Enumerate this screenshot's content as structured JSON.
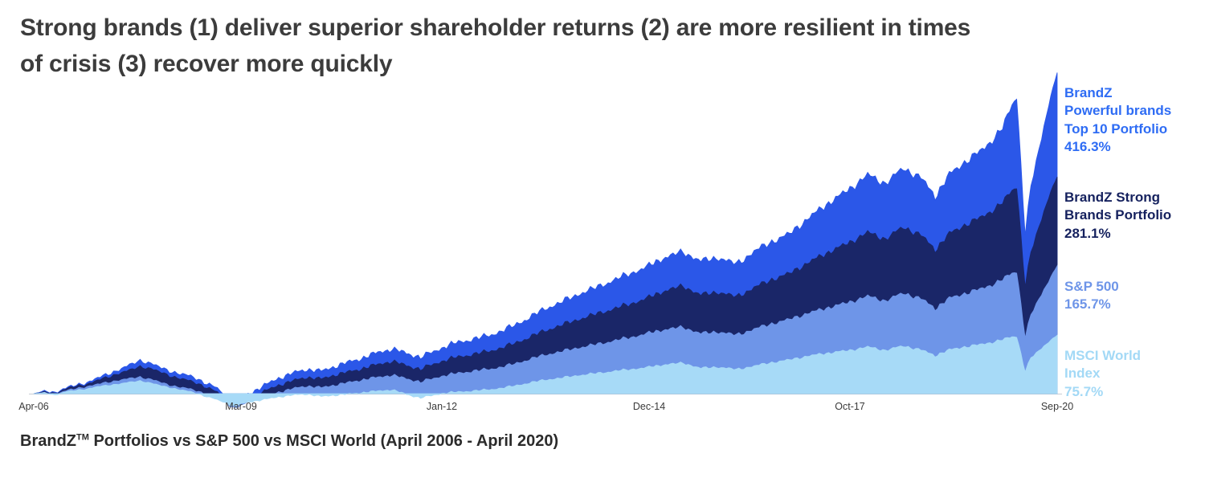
{
  "chart_data": {
    "type": "area",
    "title": "Strong brands (1) deliver superior shareholder returns (2) are more resilient in times of crisis (3) recover more quickly",
    "footnote": {
      "brand": "BrandZ",
      "tm": "TM",
      "rest": " Portfolios vs S&P 500 vs MSCI World (April 2006 - April 2020)"
    },
    "x_unit": "decimal_year",
    "x_range": [
      2006.25,
      2020.67
    ],
    "y_unit": "percent_return_since_apr_2006",
    "y_range_displayed": [
      -20,
      450
    ],
    "baseline": 0,
    "grid": false,
    "legend_position": "right",
    "x_ticks": [
      {
        "label": "Apr-06",
        "x": 2006.25
      },
      {
        "label": "Mar-09",
        "x": 2009.17
      },
      {
        "label": "Jan-12",
        "x": 2012.0
      },
      {
        "label": "Dec-14",
        "x": 2014.92
      },
      {
        "label": "Oct-17",
        "x": 2017.75
      },
      {
        "label": "Sep-20",
        "x": 2020.67
      }
    ],
    "x": [
      2006.25,
      2006.4,
      2006.55,
      2006.7,
      2006.85,
      2007.0,
      2007.15,
      2007.3,
      2007.45,
      2007.6,
      2007.75,
      2007.9,
      2008.05,
      2008.2,
      2008.35,
      2008.5,
      2008.65,
      2008.8,
      2008.95,
      2009.08,
      2009.17,
      2009.3,
      2009.5,
      2009.7,
      2009.9,
      2010.1,
      2010.3,
      2010.5,
      2010.7,
      2010.9,
      2011.1,
      2011.3,
      2011.5,
      2011.7,
      2011.85,
      2012.0,
      2012.2,
      2012.45,
      2012.7,
      2012.95,
      2013.2,
      2013.45,
      2013.7,
      2013.95,
      2014.2,
      2014.45,
      2014.7,
      2014.92,
      2015.15,
      2015.4,
      2015.65,
      2015.9,
      2016.15,
      2016.4,
      2016.65,
      2016.9,
      2017.15,
      2017.45,
      2017.75,
      2018.0,
      2018.25,
      2018.5,
      2018.75,
      2018.95,
      2019.15,
      2019.4,
      2019.65,
      2019.9,
      2020.1,
      2020.22,
      2020.3,
      2020.45,
      2020.55,
      2020.67
    ],
    "series": [
      {
        "name": "BrandZ Powerful brands Top 10 Portfolio",
        "legend_label": "BrandZ\nPowerful brands\nTop 10 Portfolio",
        "legend_value": "416.3%",
        "final_value_pct": 416.3,
        "color": "#2B57E8",
        "legend_color": "#2E6CF4",
        "jitter": 7,
        "values": [
          0,
          3,
          1,
          6,
          10,
          14,
          20,
          26,
          32,
          38,
          44,
          40,
          33,
          28,
          24,
          20,
          14,
          8,
          -2,
          -10,
          -6,
          2,
          12,
          20,
          26,
          30,
          28,
          35,
          42,
          48,
          55,
          58,
          52,
          45,
          52,
          58,
          66,
          72,
          78,
          86,
          96,
          108,
          118,
          130,
          140,
          150,
          158,
          165,
          175,
          182,
          172,
          178,
          170,
          185,
          196,
          205,
          225,
          248,
          268,
          285,
          272,
          290,
          278,
          255,
          285,
          305,
          320,
          345,
          385,
          205,
          265,
          330,
          375,
          416.3
        ]
      },
      {
        "name": "BrandZ Strong Brands Portfolio",
        "legend_label": "BrandZ Strong\nBrands Portfolio",
        "legend_value": "281.1%",
        "final_value_pct": 281.1,
        "color": "#1A2668",
        "legend_color": "#15215E",
        "jitter": 5.5,
        "values": [
          0,
          2,
          0,
          5,
          9,
          12,
          17,
          22,
          27,
          31,
          36,
          33,
          27,
          22,
          18,
          14,
          9,
          3,
          -6,
          -13,
          -10,
          -4,
          4,
          11,
          16,
          20,
          18,
          24,
          29,
          34,
          39,
          42,
          36,
          30,
          36,
          41,
          47,
          52,
          57,
          63,
          71,
          80,
          88,
          97,
          105,
          112,
          118,
          124,
          132,
          138,
          128,
          133,
          127,
          138,
          147,
          154,
          168,
          184,
          198,
          210,
          200,
          214,
          204,
          186,
          208,
          222,
          232,
          248,
          268,
          138,
          180,
          225,
          255,
          281.1
        ]
      },
      {
        "name": "S&P 500",
        "legend_label": "S&P 500",
        "legend_value": "165.7%",
        "final_value_pct": 165.7,
        "color": "#6E95E8",
        "legend_color": "#6E95E8",
        "jitter": 4,
        "values": [
          0,
          1,
          -1,
          3,
          6,
          9,
          12,
          15,
          18,
          20,
          22,
          19,
          14,
          10,
          7,
          4,
          0,
          -5,
          -12,
          -18,
          -15,
          -9,
          -3,
          2,
          6,
          9,
          7,
          11,
          15,
          19,
          22,
          24,
          19,
          14,
          18,
          22,
          26,
          30,
          33,
          37,
          43,
          49,
          54,
          60,
          65,
          70,
          74,
          78,
          82,
          85,
          78,
          81,
          77,
          84,
          90,
          95,
          103,
          112,
          120,
          127,
          120,
          129,
          122,
          110,
          124,
          132,
          138,
          148,
          158,
          72,
          100,
          128,
          146,
          165.7
        ]
      },
      {
        "name": "MSCI World Index",
        "legend_label": "MSCI World\nIndex",
        "legend_value": "75.7%",
        "final_value_pct": 75.7,
        "color": "#A7DAF7",
        "legend_color": "#A3D9F6",
        "jitter": 2.5,
        "values": [
          0,
          1,
          -2,
          2,
          4,
          6,
          9,
          11,
          13,
          15,
          17,
          14,
          10,
          7,
          4,
          1,
          -3,
          -7,
          -12,
          -16,
          -13,
          -10,
          -7,
          -4,
          -2,
          -1,
          -4,
          -2,
          0,
          2,
          4,
          5,
          -1,
          -6,
          -3,
          0,
          2,
          4,
          6,
          9,
          13,
          17,
          20,
          24,
          27,
          30,
          32,
          34,
          37,
          39,
          33,
          35,
          32,
          36,
          40,
          43,
          48,
          53,
          57,
          61,
          56,
          61,
          56,
          49,
          57,
          62,
          65,
          70,
          74,
          28,
          45,
          58,
          67,
          75.7
        ]
      }
    ]
  }
}
